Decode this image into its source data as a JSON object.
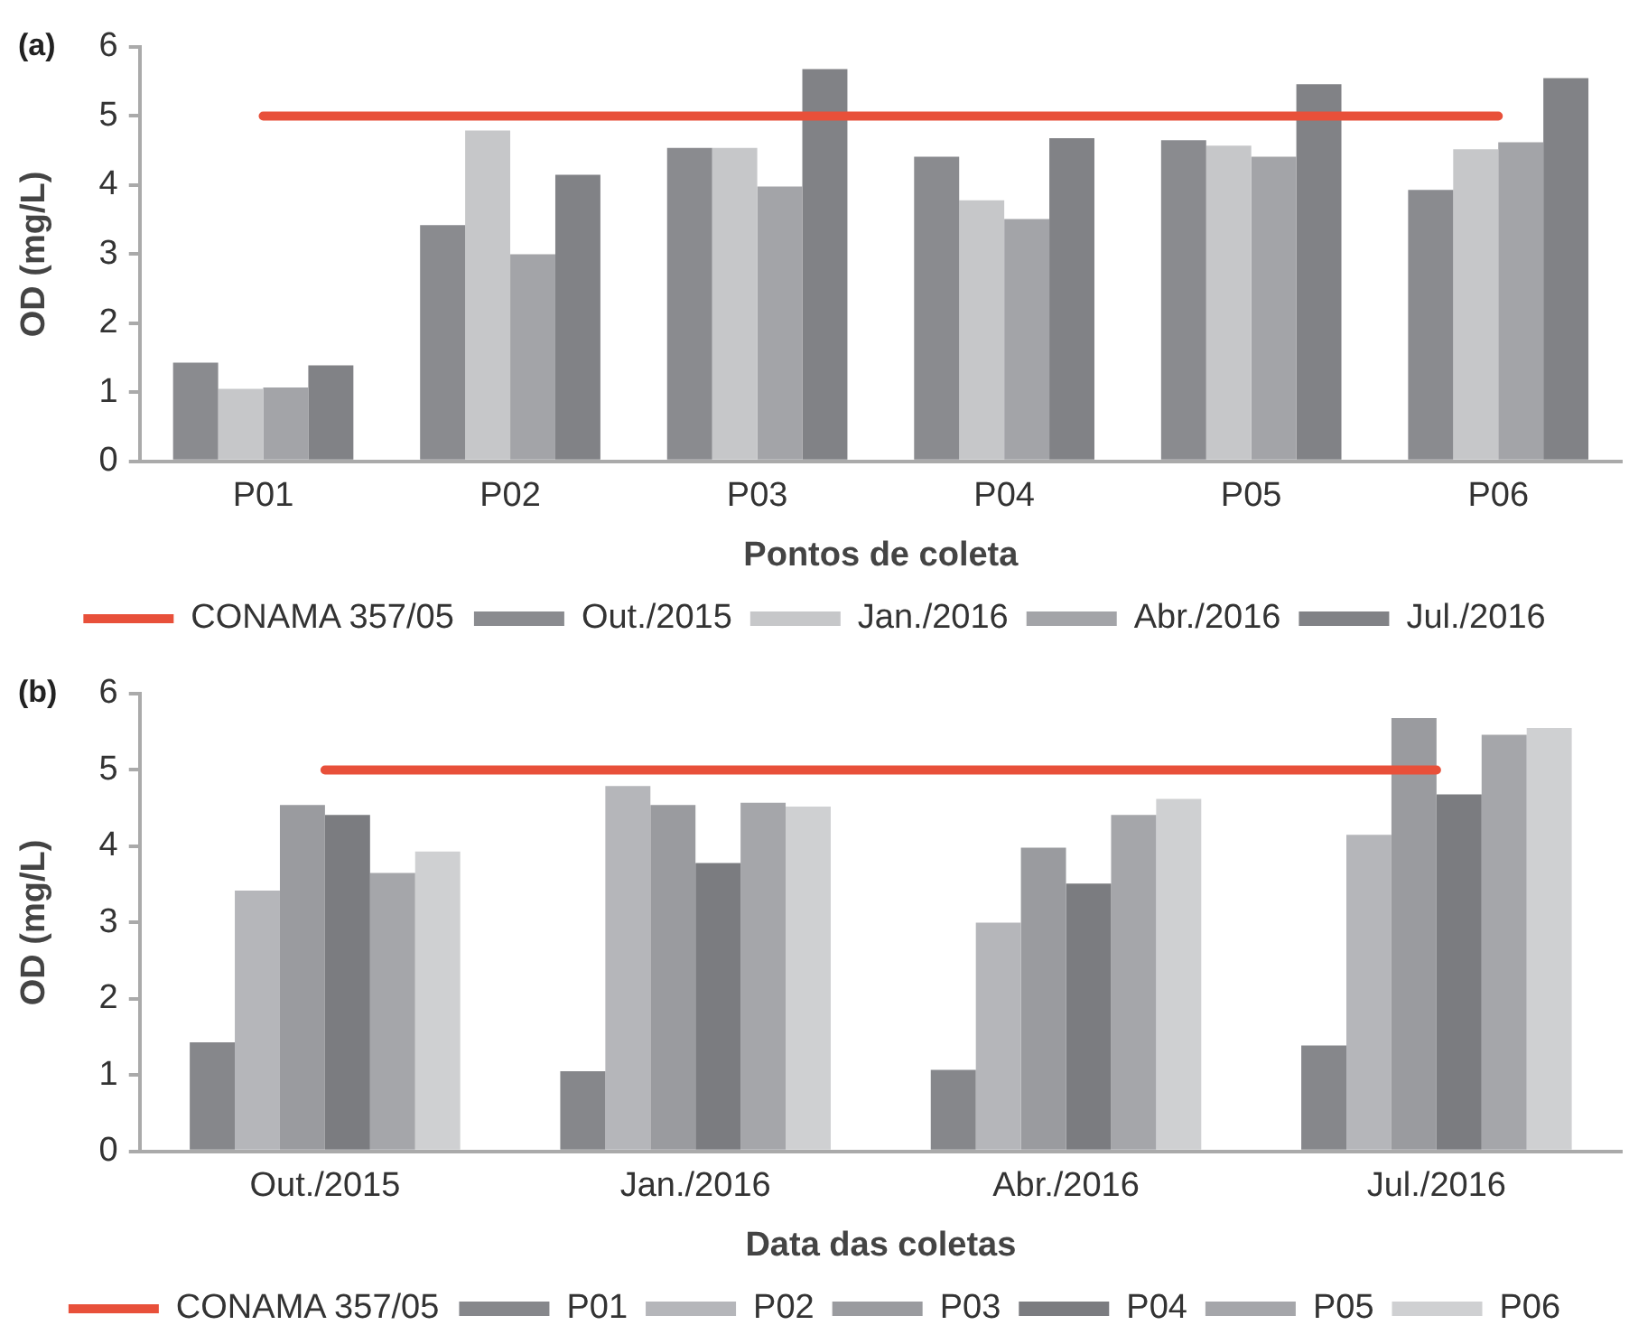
{
  "chart_data": [
    {
      "type": "bar",
      "title": "(a)",
      "xlabel": "Pontos de coleta",
      "ylabel": "OD (mg/L)",
      "categories": [
        "P01",
        "P02",
        "P03",
        "P04",
        "P05",
        "P06"
      ],
      "ylim": [
        0,
        6
      ],
      "yticks": [
        0,
        1,
        2,
        3,
        4,
        5,
        6
      ],
      "grid": false,
      "legend": "bottom",
      "series": [
        {
          "name": "Out./2015",
          "color": "#8a8b8f",
          "values": [
            1.43,
            3.42,
            4.54,
            4.41,
            4.65,
            3.93
          ]
        },
        {
          "name": "Jan./2016",
          "color": "#c6c7c9",
          "values": [
            1.05,
            4.79,
            4.54,
            3.78,
            4.57,
            4.52
          ]
        },
        {
          "name": "Abr./2016",
          "color": "#a3a4a8",
          "values": [
            1.07,
            3.0,
            3.98,
            3.51,
            4.41,
            4.62
          ]
        },
        {
          "name": "Jul./2016",
          "color": "#818286",
          "values": [
            1.39,
            4.15,
            5.68,
            4.68,
            5.46,
            5.55
          ]
        },
        {
          "name": "CONAMA 357/05",
          "type": "line",
          "color": "#e8503a",
          "values": [
            5,
            5,
            5,
            5,
            5,
            5
          ]
        }
      ]
    },
    {
      "type": "bar",
      "title": "(b)",
      "xlabel": "Data das coletas",
      "ylabel": "OD (mg/L)",
      "categories": [
        "Out./2015",
        "Jan./2016",
        "Abr./2016",
        "Jul./2016"
      ],
      "ylim": [
        0,
        6
      ],
      "yticks": [
        0,
        1,
        2,
        3,
        4,
        5,
        6
      ],
      "grid": false,
      "legend": "bottom",
      "series": [
        {
          "name": "P01",
          "color": "#86878b",
          "values": [
            1.43,
            1.05,
            1.07,
            1.39
          ]
        },
        {
          "name": "P02",
          "color": "#b5b6ba",
          "values": [
            3.42,
            4.79,
            3.0,
            4.15
          ]
        },
        {
          "name": "P03",
          "color": "#9a9b9f",
          "values": [
            4.54,
            4.54,
            3.98,
            5.68
          ]
        },
        {
          "name": "P04",
          "color": "#7b7c80",
          "values": [
            4.41,
            3.78,
            3.51,
            4.68
          ]
        },
        {
          "name": "P05",
          "color": "#a5a6aa",
          "values": [
            3.65,
            4.57,
            4.41,
            5.46
          ]
        },
        {
          "name": "P06",
          "color": "#cfd0d2",
          "values": [
            3.93,
            4.52,
            4.62,
            5.55
          ]
        },
        {
          "name": "CONAMA 357/05",
          "type": "line",
          "color": "#e8503a",
          "values": [
            5,
            5,
            5,
            5
          ]
        }
      ]
    }
  ]
}
